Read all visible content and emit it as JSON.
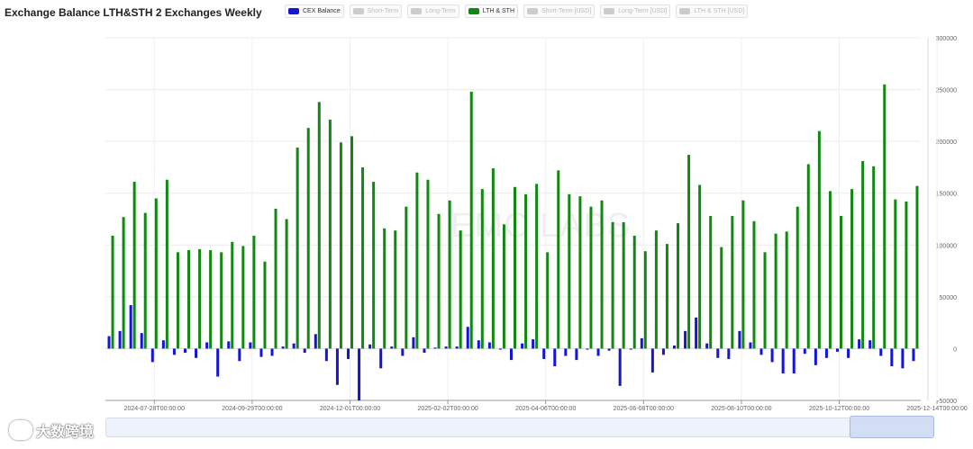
{
  "title": "Exchange Balance LTH&STH 2 Exchanges Weekly",
  "legend": [
    {
      "label": "CEX Balance",
      "color": "#1515d6",
      "active": true
    },
    {
      "label": "Short-Term",
      "color": "#cccccc",
      "active": false
    },
    {
      "label": "Long-Term",
      "color": "#cccccc",
      "active": false
    },
    {
      "label": "LTH & STH",
      "color": "#118811",
      "active": true
    },
    {
      "label": "Short-Term [USD]",
      "color": "#cccccc",
      "active": false
    },
    {
      "label": "Long-Term [USD]",
      "color": "#cccccc",
      "active": false
    },
    {
      "label": "LTH & STH [USD]",
      "color": "#cccccc",
      "active": false
    }
  ],
  "watermark": "EMC LABS",
  "brand": "大数跨境",
  "chart_data": {
    "type": "bar",
    "title": "Exchange Balance LTH&STH 2 Exchanges Weekly",
    "ylim": [
      -50000,
      300000
    ],
    "yticks": [
      300000,
      250000,
      200000,
      150000,
      100000,
      50000,
      0,
      -50000
    ],
    "ytick_labels": [
      "300000",
      "250000",
      "200000",
      "150000",
      "100000",
      "50000",
      "0",
      "-50000"
    ],
    "xtick_labels": [
      "2024-07-28T00:00:00",
      "2024-09-29T00:00:00",
      "2024-12-01T00:00:00",
      "2025-02-02T00:00:00",
      "2025-04-06T00:00:00",
      "2025-06-08T00:00:00",
      "2025-08-10T00:00:00",
      "2025-10-12T00:00:00",
      "2025-12-14T00:00:00"
    ],
    "xtick_index": [
      4,
      13,
      22,
      31,
      40,
      49,
      58,
      67,
      76
    ],
    "grid": true,
    "series": [
      {
        "name": "CEX Balance",
        "color": "#1515d6",
        "values": [
          12000,
          17000,
          42000,
          15000,
          -13000,
          8000,
          -6000,
          -4000,
          -9000,
          6000,
          -27000,
          7000,
          -12000,
          6000,
          -8000,
          -7000,
          2000,
          5000,
          -4000,
          14000,
          -12000,
          -35000,
          -10000,
          -50000,
          4000,
          -19000,
          2000,
          -7000,
          11000,
          -4000,
          1000,
          2000,
          2000,
          21000,
          8000,
          6000,
          -1000,
          -11000,
          5000,
          9000,
          -10000,
          -17000,
          -7000,
          -11000,
          -1000,
          -7000,
          -2000,
          -36000,
          -1000,
          10000,
          -23000,
          -6000,
          3000,
          17000,
          30000,
          5000,
          -9000,
          -10000,
          17000,
          6000,
          -6000,
          -13000,
          -24000,
          -24000,
          -5000,
          -16000,
          -9000,
          -3000,
          -9000,
          9000,
          8000,
          -7000,
          -17000,
          -19000,
          -12000
        ]
      },
      {
        "name": "LTH & STH",
        "color": "#118811",
        "values": [
          109000,
          127000,
          161000,
          131000,
          145000,
          163000,
          93000,
          95000,
          96000,
          95000,
          93000,
          103000,
          99000,
          109000,
          84000,
          135000,
          125000,
          194000,
          213000,
          238000,
          221000,
          199000,
          205000,
          175000,
          161000,
          116000,
          114000,
          137000,
          170000,
          163000,
          130000,
          143000,
          114000,
          248000,
          154000,
          174000,
          120000,
          156000,
          149000,
          159000,
          93000,
          172000,
          149000,
          147000,
          137000,
          143000,
          122000,
          122000,
          109000,
          94000,
          114000,
          101000,
          121000,
          187000,
          158000,
          128000,
          98000,
          128000,
          143000,
          123000,
          93000,
          111000,
          113000,
          137000,
          178000,
          210000,
          152000,
          128000,
          154000,
          181000,
          176000,
          255000,
          144000,
          142000,
          157000
        ]
      }
    ]
  }
}
